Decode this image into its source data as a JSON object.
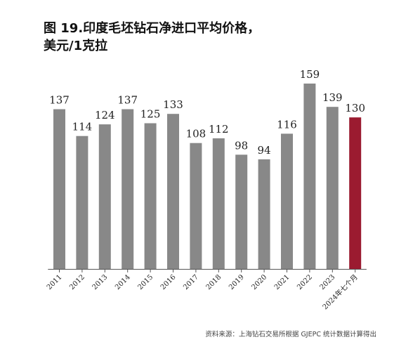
{
  "chart_data": {
    "type": "bar",
    "title_line1": "图 19.印度毛坯钻石净进口平均价格，",
    "title_line2": "美元/1克拉",
    "categories": [
      "2011",
      "2012",
      "2013",
      "2014",
      "2015",
      "2016",
      "2017",
      "2018",
      "2019",
      "2020",
      "2021",
      "2022",
      "2023",
      "2024年七个月"
    ],
    "values": [
      137,
      114,
      124,
      137,
      125,
      133,
      108,
      112,
      98,
      94,
      116,
      159,
      139,
      130
    ],
    "highlight_index": 13,
    "colors": {
      "bar": "#888888",
      "highlight": "#9b1b30",
      "axis": "#555555"
    },
    "ylim": [
      0,
      180
    ],
    "grid": false,
    "legend": "none",
    "source": "资料来源：上海钻石交易所根据 GJEPC 统计数据计算得出"
  }
}
